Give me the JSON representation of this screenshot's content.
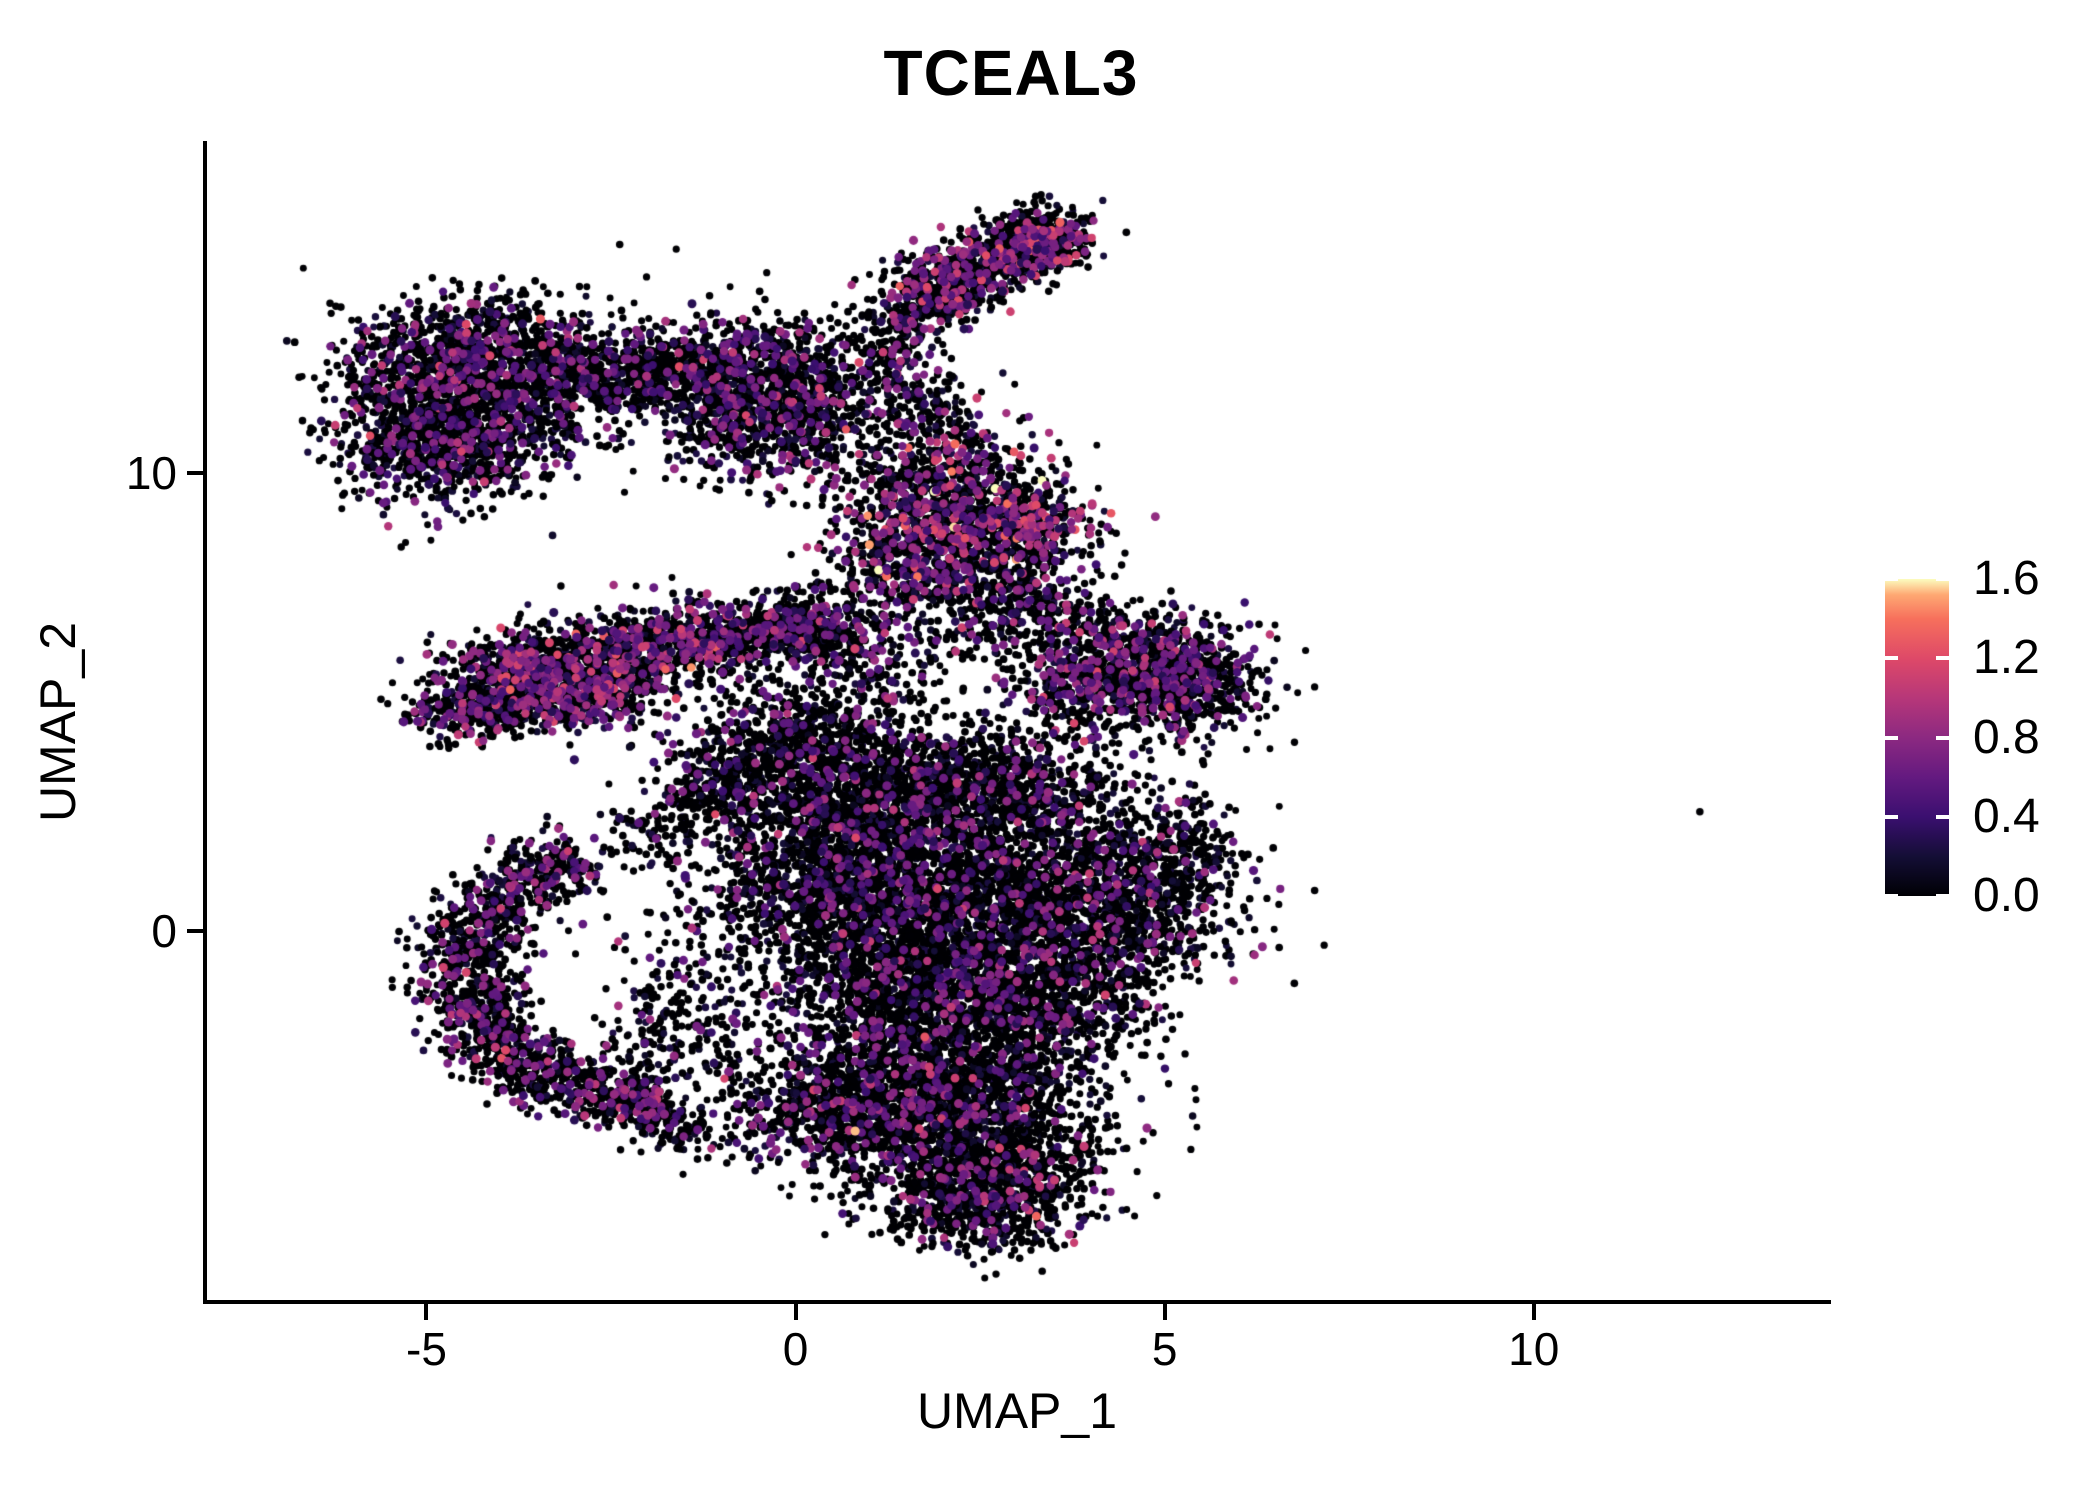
{
  "figure": {
    "title": "TCEAL3",
    "x_axis_title": "UMAP_1",
    "y_axis_title": "UMAP_2"
  },
  "colors": {
    "background": "#ffffff",
    "axis": "#000000",
    "text": "#000000",
    "legend_tick_mark": "#ffffff"
  },
  "chart_data": {
    "type": "scatter",
    "title": "TCEAL3",
    "xlabel": "UMAP_1",
    "ylabel": "UMAP_2",
    "xlim": [
      -8.0,
      14.0
    ],
    "ylim": [
      -8.1,
      17.2
    ],
    "x_ticks": [
      -5,
      0,
      5,
      10
    ],
    "y_ticks": [
      0,
      10
    ],
    "grid": false,
    "legend": {
      "position": "right",
      "scale_min": 0.0,
      "scale_max": 1.6,
      "tick_values": [
        1.6,
        1.2,
        0.8,
        0.4,
        0.0
      ],
      "colormap": "magma",
      "stops": [
        {
          "f": 0.0,
          "color": "#000004"
        },
        {
          "f": 0.125,
          "color": "#140e36"
        },
        {
          "f": 0.25,
          "color": "#3b0f70"
        },
        {
          "f": 0.375,
          "color": "#641a80"
        },
        {
          "f": 0.5,
          "color": "#8c2981"
        },
        {
          "f": 0.625,
          "color": "#b73779"
        },
        {
          "f": 0.75,
          "color": "#de4968"
        },
        {
          "f": 0.875,
          "color": "#f7705c"
        },
        {
          "f": 0.95,
          "color": "#fea873"
        },
        {
          "f": 1.0,
          "color": "#fcfdbf"
        }
      ]
    },
    "point_style": {
      "radius_black": 3.4,
      "radius_colored": 4.1,
      "radius_jitter": 0.5,
      "zero_color": "#000004"
    },
    "seed": 42,
    "note": "UMAP of ~26000 cells coloured by TCEAL3 expression (0-1.6, magma scale); most cells zero (black), expressing cells purple-magenta-salmon; cluster approximations below reproduce the point cloud",
    "clusters": [
      {
        "name": "topleft-blob-a",
        "kind": "gauss",
        "cx": -4.9,
        "cy": 11.3,
        "sx": 0.75,
        "sy": 0.95,
        "n": 900,
        "cf": 0.16
      },
      {
        "name": "topleft-blob-b",
        "kind": "gauss",
        "cx": -4.2,
        "cy": 12.5,
        "sx": 0.85,
        "sy": 0.7,
        "n": 900,
        "cf": 0.16
      },
      {
        "name": "topleft-blob-c",
        "kind": "gauss",
        "cx": -4.6,
        "cy": 10.5,
        "sx": 0.6,
        "sy": 0.5,
        "n": 300,
        "cf": 0.14
      },
      {
        "name": "topleft-blob-d",
        "kind": "gauss",
        "cx": -3.55,
        "cy": 11.6,
        "sx": 0.6,
        "sy": 0.7,
        "n": 320,
        "cf": 0.16
      },
      {
        "name": "top-bridge",
        "kind": "line",
        "x1": -3.1,
        "y1": 12.1,
        "x2": -1.4,
        "y2": 12.35,
        "s": 0.38,
        "n": 480,
        "cf": 0.13
      },
      {
        "name": "midtop-left-a",
        "kind": "gauss",
        "cx": -0.55,
        "cy": 12.2,
        "sx": 0.7,
        "sy": 0.65,
        "n": 720,
        "cf": 0.18
      },
      {
        "name": "midtop-left-b",
        "kind": "gauss",
        "cx": 0.1,
        "cy": 11.25,
        "sx": 0.6,
        "sy": 0.7,
        "n": 500,
        "cf": 0.18
      },
      {
        "name": "midtop-left-c",
        "kind": "gauss",
        "cx": -0.95,
        "cy": 10.9,
        "sx": 0.5,
        "sy": 0.55,
        "n": 230,
        "cf": 0.15
      },
      {
        "name": "top-small-diag",
        "kind": "line",
        "x1": 1.6,
        "y1": 13.8,
        "x2": 3.6,
        "y2": 15.3,
        "s": 0.34,
        "n": 880,
        "cf": 0.2,
        "vm": 0.75,
        "vs": 0.28
      },
      {
        "name": "top-small-knot",
        "kind": "gauss",
        "cx": 3.4,
        "cy": 15.05,
        "sx": 0.27,
        "sy": 0.25,
        "n": 230,
        "cf": 0.2,
        "vm": 0.75,
        "vs": 0.3
      },
      {
        "name": "top-small-tail",
        "kind": "line",
        "x1": 1.25,
        "y1": 13.25,
        "x2": 2.4,
        "y2": 13.95,
        "s": 0.3,
        "n": 170,
        "cf": 0.15
      },
      {
        "name": "top-chain",
        "kind": "line",
        "x1": 1.2,
        "y1": 13.1,
        "x2": 1.95,
        "y2": 10.9,
        "s": 0.3,
        "n": 250,
        "cf": 0.15
      },
      {
        "name": "mid-cluster-a",
        "kind": "gauss",
        "cx": 2.05,
        "cy": 9.35,
        "sx": 0.8,
        "sy": 0.85,
        "n": 900,
        "cf": 0.26,
        "vm": 0.78,
        "vs": 0.3
      },
      {
        "name": "mid-cluster-b",
        "kind": "gauss",
        "cx": 2.95,
        "cy": 8.6,
        "sx": 0.55,
        "sy": 0.6,
        "n": 470,
        "cf": 0.26,
        "vm": 0.78,
        "vs": 0.3
      },
      {
        "name": "mid-cluster-c",
        "kind": "gauss",
        "cx": 1.55,
        "cy": 7.95,
        "sx": 0.5,
        "sy": 0.55,
        "n": 320,
        "cf": 0.22,
        "vm": 0.7,
        "vs": 0.28
      },
      {
        "name": "right-mid-a",
        "kind": "gauss",
        "cx": 4.6,
        "cy": 5.95,
        "sx": 0.68,
        "sy": 0.55,
        "n": 560,
        "cf": 0.2,
        "vm": 0.7,
        "vs": 0.26
      },
      {
        "name": "right-mid-b",
        "kind": "gauss",
        "cx": 5.3,
        "cy": 5.3,
        "sx": 0.5,
        "sy": 0.6,
        "n": 470,
        "cf": 0.18
      },
      {
        "name": "right-mid-c",
        "kind": "gauss",
        "cx": 3.95,
        "cy": 5.2,
        "sx": 0.48,
        "sy": 0.5,
        "n": 260,
        "cf": 0.18
      },
      {
        "name": "diag-bridge",
        "kind": "line",
        "x1": 2.3,
        "y1": 7.8,
        "x2": 4.1,
        "y2": 6.4,
        "s": 0.42,
        "n": 300,
        "cf": 0.15
      },
      {
        "name": "left-band-upper",
        "kind": "line",
        "x1": -4.3,
        "y1": 5.55,
        "x2": -0.9,
        "y2": 6.45,
        "s": 0.43,
        "n": 1350,
        "cf": 0.24,
        "vm": 0.72,
        "vs": 0.26
      },
      {
        "name": "left-band-lower",
        "kind": "line",
        "x1": -4.9,
        "y1": 4.75,
        "x2": -2.2,
        "y2": 5.2,
        "s": 0.35,
        "n": 720,
        "cf": 0.22,
        "vm": 0.7,
        "vs": 0.25
      },
      {
        "name": "left-band-right",
        "kind": "line",
        "x1": -1.1,
        "y1": 6.2,
        "x2": 0.45,
        "y2": 6.85,
        "s": 0.36,
        "n": 360,
        "cf": 0.2
      },
      {
        "name": "left-band-tip",
        "kind": "gauss",
        "cx": 0.05,
        "cy": 6.55,
        "sx": 0.5,
        "sy": 0.35,
        "n": 200,
        "cf": 0.2
      },
      {
        "name": "central-topleft",
        "kind": "gauss",
        "cx": 0.9,
        "cy": 3.0,
        "sx": 0.9,
        "sy": 0.78,
        "n": 1000,
        "cf": 0.1,
        "vm": 0.6
      },
      {
        "name": "central-topright",
        "kind": "gauss",
        "cx": 2.7,
        "cy": 3.1,
        "sx": 0.85,
        "sy": 0.7,
        "n": 900,
        "cf": 0.1
      },
      {
        "name": "central-left",
        "kind": "gauss",
        "cx": 0.6,
        "cy": 1.0,
        "sx": 0.95,
        "sy": 0.9,
        "n": 1400,
        "cf": 0.09
      },
      {
        "name": "central-core",
        "kind": "gauss",
        "cx": 2.4,
        "cy": 0.6,
        "sx": 1.0,
        "sy": 0.95,
        "n": 1500,
        "cf": 0.09
      },
      {
        "name": "central-right",
        "kind": "gauss",
        "cx": 4.3,
        "cy": 0.6,
        "sx": 0.8,
        "sy": 0.95,
        "n": 1000,
        "cf": 0.1
      },
      {
        "name": "central-lowleft",
        "kind": "gauss",
        "cx": 1.4,
        "cy": -1.2,
        "sx": 0.9,
        "sy": 0.7,
        "n": 900,
        "cf": 0.09
      },
      {
        "name": "central-lowright",
        "kind": "gauss",
        "cx": 3.2,
        "cy": -1.5,
        "sx": 0.8,
        "sy": 0.7,
        "n": 800,
        "cf": 0.1
      },
      {
        "name": "central-topspur",
        "kind": "gauss",
        "cx": 0.1,
        "cy": 4.4,
        "sx": 0.65,
        "sy": 0.6,
        "n": 450,
        "cf": 0.1
      },
      {
        "name": "central-leftspur",
        "kind": "gauss",
        "cx": -0.75,
        "cy": 3.4,
        "sx": 0.55,
        "sy": 0.65,
        "n": 350,
        "cf": 0.1
      },
      {
        "name": "central-rightspur",
        "kind": "gauss",
        "cx": 5.1,
        "cy": 1.9,
        "sx": 0.45,
        "sy": 0.6,
        "n": 220,
        "cf": 0.12
      },
      {
        "name": "bottom-mass-a",
        "kind": "gauss",
        "cx": 1.9,
        "cy": -3.2,
        "sx": 1.1,
        "sy": 0.75,
        "n": 1300,
        "cf": 0.1
      },
      {
        "name": "bottom-mass-b",
        "kind": "gauss",
        "cx": 2.3,
        "cy": -4.8,
        "sx": 0.95,
        "sy": 0.85,
        "n": 1300,
        "cf": 0.1,
        "vm": 0.68
      },
      {
        "name": "bottom-tip",
        "kind": "gauss",
        "cx": 2.6,
        "cy": -6.0,
        "sx": 0.6,
        "sy": 0.5,
        "n": 450,
        "cf": 0.1,
        "vm": 0.7
      },
      {
        "name": "bottom-leftbump",
        "kind": "gauss",
        "cx": 0.6,
        "cy": -3.9,
        "sx": 0.5,
        "sy": 0.6,
        "n": 350,
        "cf": 0.12
      },
      {
        "name": "left-crescent",
        "kind": "arc",
        "cx": -1.7,
        "cy": -0.9,
        "r": 2.8,
        "a1": 115,
        "a2": 270,
        "s": 0.35,
        "n": 1600,
        "cf": 0.15,
        "vm": 0.68
      },
      {
        "name": "crescent-tail",
        "kind": "line",
        "x1": -2.2,
        "y1": -3.85,
        "x2": -1.35,
        "y2": -4.5,
        "s": 0.25,
        "n": 130,
        "cf": 0.12
      },
      {
        "name": "crescent-inner",
        "kind": "gauss",
        "cx": -1.6,
        "cy": -2.0,
        "sx": 0.55,
        "sy": 0.8,
        "n": 240,
        "cf": 0.1
      },
      {
        "name": "band-to-central",
        "kind": "line",
        "x1": 0.6,
        "y1": 6.8,
        "x2": 1.35,
        "y2": 5.3,
        "s": 0.45,
        "n": 200,
        "cf": 0.12
      },
      {
        "name": "sparse-mid",
        "kind": "gauss",
        "cx": 2.5,
        "cy": 6.6,
        "sx": 0.7,
        "sy": 0.6,
        "n": 160,
        "cf": 0.12
      },
      {
        "name": "sparse-bottomleft",
        "kind": "gauss",
        "cx": -0.4,
        "cy": -4.0,
        "sx": 0.55,
        "sy": 0.6,
        "n": 130,
        "cf": 0.1
      },
      {
        "name": "crescent-to-central",
        "kind": "line",
        "x1": -2.35,
        "y1": 1.7,
        "x2": -0.95,
        "y2": 3.3,
        "s": 0.35,
        "n": 160,
        "cf": 0.12
      },
      {
        "name": "isolated-cell",
        "kind": "gauss",
        "cx": 12.25,
        "cy": 2.6,
        "sx": 0.01,
        "sy": 0.01,
        "n": 1,
        "cf": 0
      }
    ]
  }
}
